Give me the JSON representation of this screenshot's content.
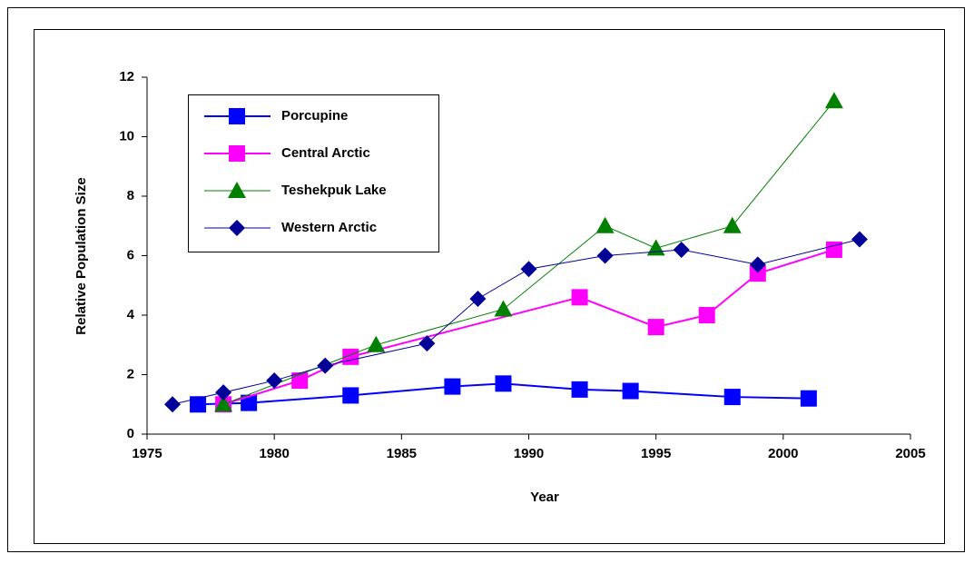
{
  "chart_data": {
    "type": "line",
    "x_label": "Year",
    "y_label": "Relative Population Size",
    "xlim": [
      1975,
      2005
    ],
    "xticks": [
      1975,
      1980,
      1985,
      1990,
      1995,
      2000,
      2005
    ],
    "ylim": [
      0,
      12
    ],
    "yticks": [
      0,
      2,
      4,
      6,
      8,
      10,
      12
    ],
    "legend": "upper left",
    "series": [
      {
        "name": "Porcupine",
        "color": "#0000ff",
        "marker": "square",
        "x": [
          1977,
          1979,
          1983,
          1987,
          1989,
          1992,
          1994,
          1998,
          2001
        ],
        "values": [
          1.0,
          1.05,
          1.3,
          1.6,
          1.7,
          1.5,
          1.45,
          1.25,
          1.2
        ]
      },
      {
        "name": "Central Arctic",
        "color": "#ff00ff",
        "marker": "square",
        "x": [
          1978,
          1981,
          1983,
          1992,
          1995,
          1997,
          1999,
          2002
        ],
        "values": [
          1.0,
          1.8,
          2.6,
          4.6,
          3.6,
          4.0,
          5.4,
          6.2
        ]
      },
      {
        "name": "Teshekpuk Lake",
        "color": "#008000",
        "marker": "triangle",
        "x": [
          1978,
          1984,
          1989,
          1993,
          1995,
          1998,
          2002
        ],
        "values": [
          1.0,
          3.0,
          4.2,
          7.0,
          6.25,
          7.0,
          11.2
        ]
      },
      {
        "name": "Western Arctic",
        "color": "#000099",
        "marker": "diamond",
        "x": [
          1976,
          1978,
          1980,
          1982,
          1986,
          1988,
          1990,
          1993,
          1996,
          1999,
          2003
        ],
        "values": [
          1.0,
          1.4,
          1.8,
          2.3,
          3.05,
          4.55,
          5.55,
          6.0,
          6.2,
          5.7,
          6.55
        ]
      }
    ]
  }
}
